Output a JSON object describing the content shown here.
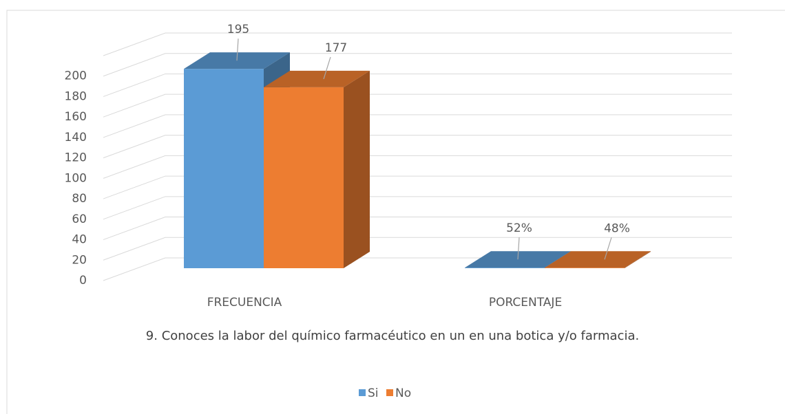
{
  "chart_data": {
    "type": "bar3d",
    "title": "9. Conoces la labor del químico farmacéutico en un en una botica y/o farmacia.",
    "categories": [
      "FRECUENCIA",
      "PORCENTAJE"
    ],
    "series": [
      {
        "name": "Si",
        "color": "#5b9bd5",
        "values": [
          195,
          0.52
        ],
        "value_labels": [
          "195",
          "52%"
        ]
      },
      {
        "name": "No",
        "color": "#ed7d31",
        "values": [
          177,
          0.48
        ],
        "value_labels": [
          "177",
          "48%"
        ]
      }
    ],
    "ylim": [
      0,
      220
    ],
    "yticks": [
      0,
      20,
      40,
      60,
      80,
      100,
      120,
      140,
      160,
      180,
      200
    ],
    "grid": true,
    "legend": "bottom"
  }
}
